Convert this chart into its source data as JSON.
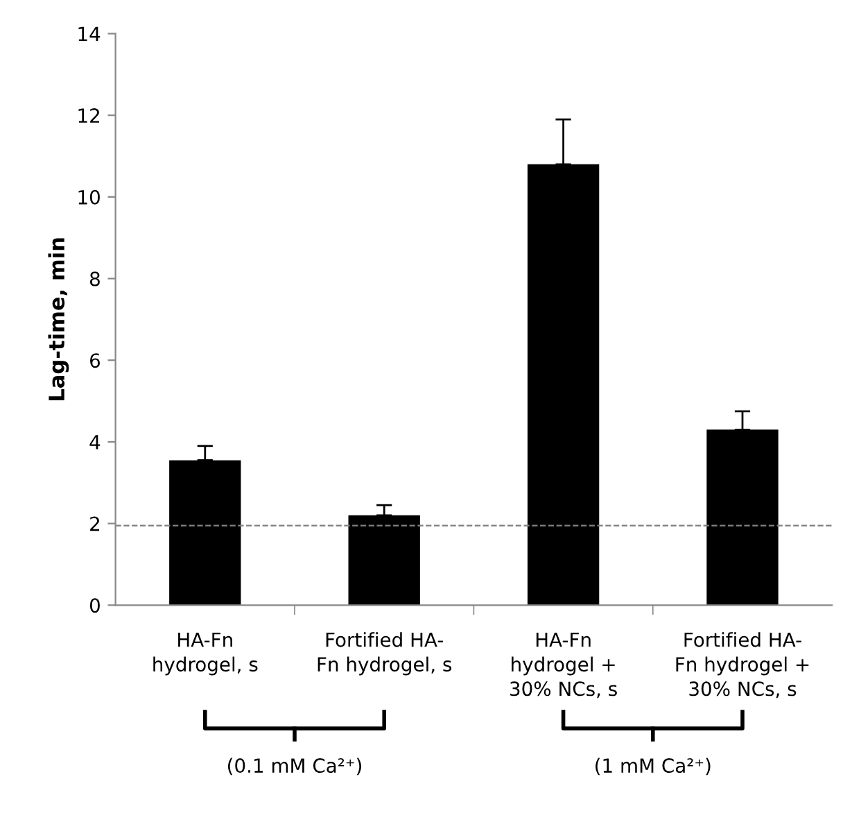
{
  "chart_data": {
    "type": "bar",
    "ylabel": "Lag-time, min",
    "categories": [
      "HA-Fn\nhydrogel, s",
      "Fortified HA-\nFn hydrogel, s",
      "HA-Fn\nhydrogel +\n30% NCs, s",
      "Fortified HA-\nFn hydrogel +\n30% NCs, s"
    ],
    "values": [
      3.55,
      2.2,
      10.8,
      4.3
    ],
    "errors": [
      0.35,
      0.25,
      1.1,
      0.45
    ],
    "color": "#000000",
    "ylim": [
      0,
      14
    ],
    "yticks": [
      0,
      2,
      4,
      6,
      8,
      10,
      12,
      14
    ],
    "ref_lines": [
      {
        "axis": "y",
        "value": 1.95,
        "color": "#808080",
        "line_style": "dashed"
      }
    ],
    "annotations": [
      "(0.1 mM Ca²⁺)",
      "(1 mM Ca²⁺)"
    ],
    "grid": false
  }
}
